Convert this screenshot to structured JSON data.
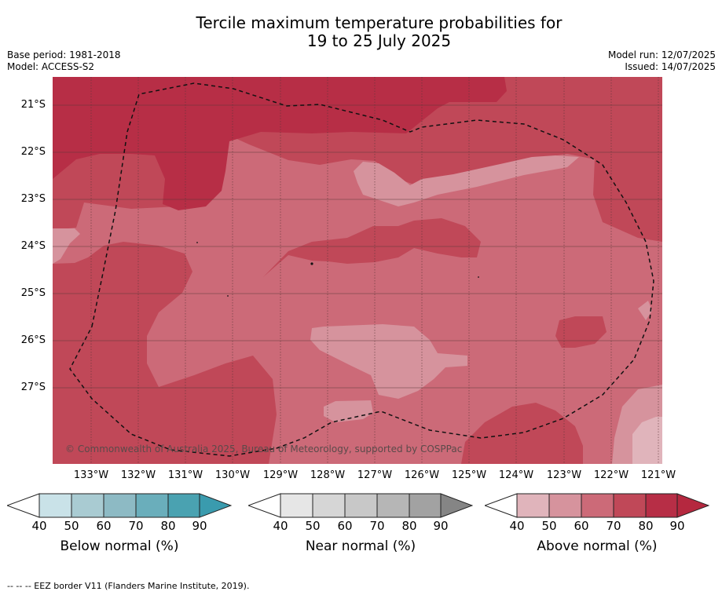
{
  "title": {
    "line1": "Tercile maximum temperature probabilities for",
    "line2": "19 to 25 July 2025"
  },
  "meta": {
    "base_period": "Base period: 1981-2018",
    "model": "Model: ACCESS-S2",
    "model_run": "Model run: 12/07/2025",
    "issued": "Issued: 14/07/2025"
  },
  "map": {
    "copyright": "© Commonwealth of Australia 2025, Bureau of Meteorology, supported by COSPPac",
    "lat_labels": [
      "21°S",
      "22°S",
      "23°S",
      "24°S",
      "25°S",
      "26°S",
      "27°S"
    ],
    "lon_labels": [
      "133°W",
      "132°W",
      "131°W",
      "130°W",
      "129°W",
      "128°W",
      "127°W",
      "126°W",
      "125°W",
      "124°W",
      "123°W",
      "122°W",
      "121°W"
    ],
    "colors": {
      "above_50": "#e0b4bb",
      "above_60": "#d6939d",
      "above_70": "#cc6a78",
      "above_80": "#c04858",
      "above_90": "#b72e46"
    }
  },
  "colorbars": [
    {
      "label": "Below normal (%)",
      "ticks": [
        "40",
        "50",
        "60",
        "70",
        "80",
        "90"
      ],
      "colors": [
        "#c9e2e8",
        "#a9cbd2",
        "#8dbac4",
        "#6aaebb",
        "#4aa2b1"
      ],
      "extend_color": "#3a9bae"
    },
    {
      "label": "Near normal (%)",
      "ticks": [
        "40",
        "50",
        "60",
        "70",
        "80",
        "90"
      ],
      "colors": [
        "#e6e6e6",
        "#d6d6d6",
        "#c8c8c8",
        "#b6b6b6",
        "#a2a2a2"
      ],
      "extend_color": "#858585"
    },
    {
      "label": "Above normal (%)",
      "ticks": [
        "40",
        "50",
        "60",
        "70",
        "80",
        "90"
      ],
      "colors": [
        "#e0b4bb",
        "#d6939d",
        "#cc6a78",
        "#c04858",
        "#b72e46"
      ],
      "extend_color": "#b5283f"
    }
  ],
  "footer": "-- -- -- EEZ border V11 (Flanders Marine Institute, 2019)."
}
